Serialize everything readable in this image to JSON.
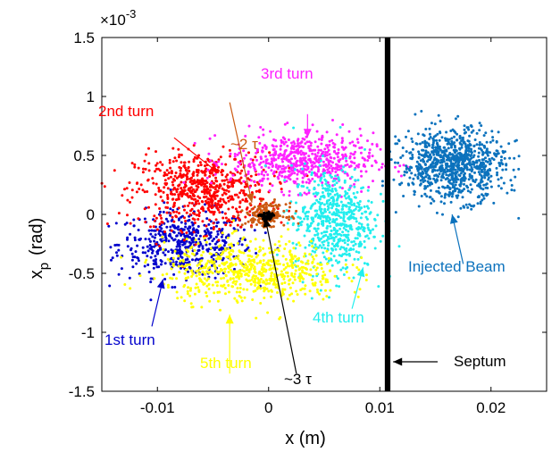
{
  "chart_data": {
    "type": "scatter",
    "title": "",
    "xlabel": "x (m)",
    "ylabel": "x",
    "ylabel_sub": "p",
    "ylabel_unit": "(rad)",
    "y_multiplier_label": "×10",
    "y_multiplier_exp": "-3",
    "xlim": [
      -0.015,
      0.025
    ],
    "ylim": [
      -1.5,
      1.5
    ],
    "y_scale": 0.001,
    "grid": false,
    "legend": "none",
    "xticks": [
      -0.01,
      0,
      0.01,
      0.02
    ],
    "xtick_labels": [
      "-0.01",
      "0",
      "0.01",
      "0.02"
    ],
    "yticks": [
      -1.5,
      -1,
      -0.5,
      0,
      0.5,
      1,
      1.5
    ],
    "ytick_labels": [
      "-1.5",
      "-1",
      "-0.5",
      "0",
      "0.5",
      "1",
      "1.5"
    ],
    "septum": {
      "x": 0.0107,
      "width": 0.0005,
      "color": "#000000"
    },
    "clusters": [
      {
        "label": "1st turn",
        "color": "#0000cc",
        "center": [
          -0.0075,
          -0.25
        ],
        "spread": [
          0.003,
          0.14
        ],
        "n": 500
      },
      {
        "label": "2nd turn",
        "color": "#ff0000",
        "center": [
          -0.006,
          0.2
        ],
        "spread": [
          0.003,
          0.16
        ],
        "n": 650
      },
      {
        "label": "3rd turn",
        "color": "#ff22ff",
        "center": [
          0.003,
          0.45
        ],
        "spread": [
          0.0032,
          0.12
        ],
        "n": 600
      },
      {
        "label": "4th turn",
        "color": "#22eeee",
        "center": [
          0.0058,
          -0.05
        ],
        "spread": [
          0.0018,
          0.22
        ],
        "n": 600
      },
      {
        "label": "5th turn",
        "color": "#ffff00",
        "center": [
          -0.0015,
          -0.48
        ],
        "spread": [
          0.004,
          0.13
        ],
        "n": 650
      },
      {
        "label": "~2 τ",
        "color": "#cc5a12",
        "center": [
          -0.0002,
          0.0
        ],
        "spread": [
          0.0009,
          0.045
        ],
        "n": 180
      },
      {
        "label": "~3 τ",
        "color": "#000000",
        "center": [
          -0.0002,
          -0.02
        ],
        "spread": [
          0.0003,
          0.02
        ],
        "n": 60
      },
      {
        "label": "Injected Beam",
        "color": "#0c72bd",
        "center": [
          0.0166,
          0.42
        ],
        "spread": [
          0.0023,
          0.15
        ],
        "n": 900
      }
    ],
    "annotations": [
      {
        "text": "2nd turn",
        "color": "#ff0000",
        "arrow_from": [
          -0.0085,
          0.65
        ],
        "arrow_to": [
          -0.0045,
          0.35
        ]
      },
      {
        "text": "~2 τ",
        "color": "#cc5a12",
        "arrow_from": [
          -0.0035,
          0.95
        ],
        "arrow_to": [
          -0.0015,
          0.1
        ]
      },
      {
        "text": "3rd turn",
        "color": "#ff22ff",
        "arrow_from": [
          0.0035,
          0.85
        ],
        "arrow_to": [
          0.0035,
          0.65
        ]
      },
      {
        "text": "Injected Beam",
        "color": "#0c72bd",
        "arrow_from": [
          0.0175,
          -0.42
        ],
        "arrow_to": [
          0.0165,
          0.0
        ]
      },
      {
        "text": "4th turn",
        "color": "#22eeee",
        "arrow_from": [
          0.0075,
          -0.8
        ],
        "arrow_to": [
          0.0085,
          -0.45
        ]
      },
      {
        "text": "1st turn",
        "color": "#0000cc",
        "arrow_from": [
          -0.0105,
          -0.95
        ],
        "arrow_to": [
          -0.0095,
          -0.55
        ]
      },
      {
        "text": "5th turn",
        "color": "#ffff00",
        "arrow_from": [
          -0.0035,
          -1.35
        ],
        "arrow_to": [
          -0.0035,
          -0.85
        ]
      },
      {
        "text": "~3 τ",
        "color": "#000000",
        "arrow_from": [
          0.0025,
          -1.35
        ],
        "arrow_to": [
          -0.0003,
          -0.03
        ]
      },
      {
        "text": "Septum",
        "color": "#000000",
        "arrow_from": [
          0.0152,
          -1.25
        ],
        "arrow_to": [
          0.0112,
          -1.25
        ]
      }
    ]
  }
}
